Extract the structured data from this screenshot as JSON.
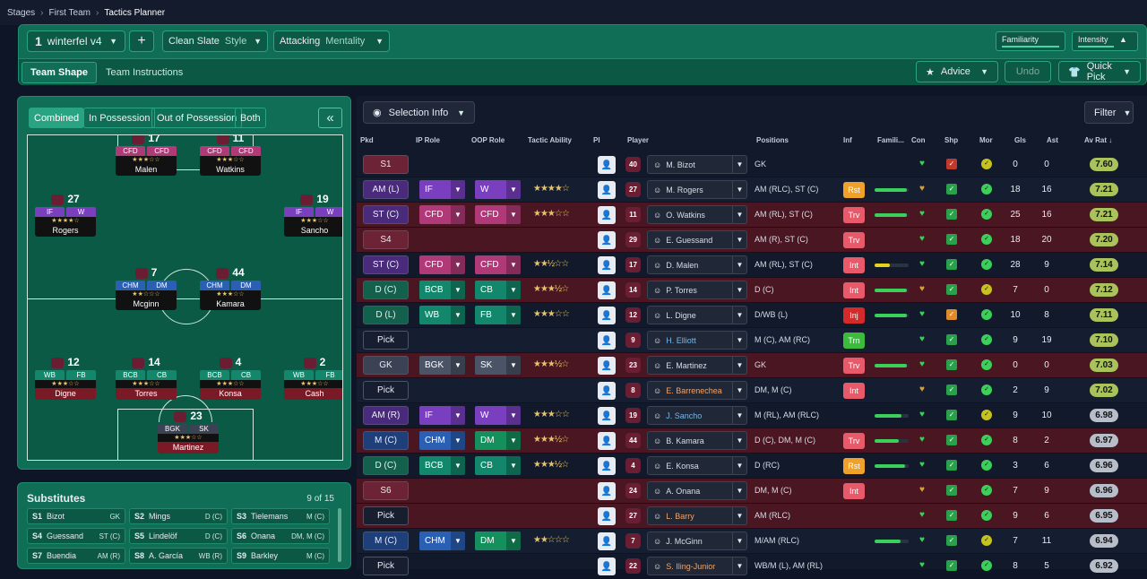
{
  "breadcrumb": {
    "items": [
      "Stages",
      "First Team",
      "Tactics Planner"
    ]
  },
  "ribbon": {
    "tactic_num": "1",
    "tactic_name": "winterfel v4",
    "style_value": "Clean Slate",
    "style_label": "Style",
    "mentality_value": "Attacking",
    "mentality_label": "Mentality",
    "familiarity_label": "Familiarity",
    "intensity_label": "Intensity",
    "tab_shape": "Team Shape",
    "tab_instructions": "Team Instructions",
    "advice": "Advice",
    "undo": "Undo",
    "quick_pick": "Quick Pick"
  },
  "pitch": {
    "modes": [
      "Combined",
      "In Possession",
      "Out of Possession",
      "Both"
    ],
    "players": [
      {
        "num": "17",
        "r1": "CFD",
        "r2": "CFD",
        "stars": "★★★☆☆",
        "name": "Malen",
        "c": "#b03a78"
      },
      {
        "num": "11",
        "r1": "CFD",
        "r2": "CFD",
        "stars": "★★★☆☆",
        "name": "Watkins",
        "c": "#b03a78"
      },
      {
        "num": "27",
        "r1": "IF",
        "r2": "W",
        "stars": "★★★★☆",
        "name": "Rogers",
        "c": "#7a3fbf"
      },
      {
        "num": "19",
        "r1": "IF",
        "r2": "W",
        "stars": "★★★☆☆",
        "name": "Sancho",
        "c": "#7a3fbf"
      },
      {
        "num": "7",
        "r1": "CHM",
        "r2": "DM",
        "stars": "★★☆☆☆",
        "name": "Mcginn",
        "c": "#2a5fb3"
      },
      {
        "num": "44",
        "r1": "CHM",
        "r2": "DM",
        "stars": "★★★☆☆",
        "name": "Kamara",
        "c": "#2a5fb3"
      },
      {
        "num": "12",
        "r1": "WB",
        "r2": "FB",
        "stars": "★★★☆☆",
        "name": "Digne",
        "c": "#12876b"
      },
      {
        "num": "14",
        "r1": "BCB",
        "r2": "CB",
        "stars": "★★★☆☆",
        "name": "Torres",
        "c": "#12876b"
      },
      {
        "num": "4",
        "r1": "BCB",
        "r2": "CB",
        "stars": "★★★☆☆",
        "name": "Konsa",
        "c": "#12876b"
      },
      {
        "num": "2",
        "r1": "WB",
        "r2": "FB",
        "stars": "★★★☆☆",
        "name": "Cash",
        "c": "#12876b"
      },
      {
        "num": "23",
        "r1": "BGK",
        "r2": "SK",
        "stars": "★★★☆☆",
        "name": "Martinez",
        "c": "#3b4254"
      }
    ]
  },
  "subs": {
    "title": "Substitutes",
    "count": "9 of 15",
    "items": [
      {
        "slot": "S1",
        "name": "Bizot",
        "pos": "GK"
      },
      {
        "slot": "S2",
        "name": "Mings",
        "pos": "D (C)"
      },
      {
        "slot": "S3",
        "name": "Tielemans",
        "pos": "M (C)"
      },
      {
        "slot": "S4",
        "name": "Guessand",
        "pos": "ST (C)"
      },
      {
        "slot": "S5",
        "name": "Lindelöf",
        "pos": "D (C)"
      },
      {
        "slot": "S6",
        "name": "Onana",
        "pos": "DM, M (C)"
      },
      {
        "slot": "S7",
        "name": "Buendia",
        "pos": "AM (R)"
      },
      {
        "slot": "S8",
        "name": "A. García",
        "pos": "WB (R)"
      },
      {
        "slot": "S9",
        "name": "Barkley",
        "pos": "M (C)"
      }
    ]
  },
  "table": {
    "selection_info": "Selection Info",
    "filter": "Filter",
    "headers": {
      "pkd": "Pkd",
      "ip": "IP Role",
      "oop": "OOP Role",
      "ability": "Tactic Ability",
      "pi": "PI",
      "player": "Player",
      "positions": "Positions",
      "inf": "Inf",
      "fam": "Famili...",
      "con": "Con",
      "shp": "Shp",
      "mor": "Mor",
      "gls": "Gls",
      "ast": "Ast",
      "avr": "Av Rat"
    },
    "rows": [
      {
        "pk": "S1",
        "ip": "",
        "oop": "",
        "stars": "",
        "num": "40",
        "name": "M. Bizot",
        "pos": "GK",
        "inf": "",
        "fam": 0,
        "gls": "0",
        "ast": "0",
        "avr": "7.60"
      },
      {
        "pk": "AM (L)",
        "ip": "IF",
        "oop": "W",
        "stars": "★★★★☆",
        "num": "27",
        "name": "M. Rogers",
        "pos": "AM (RLC), ST (C)",
        "inf": "Rst",
        "fam": 95,
        "gls": "18",
        "ast": "16",
        "avr": "7.21"
      },
      {
        "pk": "ST (C)",
        "ip": "CFD",
        "oop": "CFD",
        "stars": "★★★☆☆",
        "num": "11",
        "name": "O. Watkins",
        "pos": "AM (RL), ST (C)",
        "inf": "Trv",
        "fam": 95,
        "gls": "25",
        "ast": "16",
        "avr": "7.21"
      },
      {
        "pk": "S4",
        "ip": "",
        "oop": "",
        "stars": "",
        "num": "29",
        "name": "E. Guessand",
        "pos": "AM (R), ST (C)",
        "inf": "Trv",
        "fam": 0,
        "gls": "18",
        "ast": "20",
        "avr": "7.20"
      },
      {
        "pk": "ST (C)",
        "ip": "CFD",
        "oop": "CFD",
        "stars": "★★½☆☆",
        "num": "17",
        "name": "D. Malen",
        "pos": "AM (RL), ST (C)",
        "inf": "Int",
        "fam": 45,
        "gls": "28",
        "ast": "9",
        "avr": "7.14"
      },
      {
        "pk": "D (C)",
        "ip": "BCB",
        "oop": "CB",
        "stars": "★★★½☆",
        "num": "14",
        "name": "P. Torres",
        "pos": "D (C)",
        "inf": "Int",
        "fam": 95,
        "gls": "7",
        "ast": "0",
        "avr": "7.12"
      },
      {
        "pk": "D (L)",
        "ip": "WB",
        "oop": "FB",
        "stars": "★★★☆☆",
        "num": "12",
        "name": "L. Digne",
        "pos": "D/WB (L)",
        "inf": "Inj",
        "fam": 95,
        "gls": "10",
        "ast": "8",
        "avr": "7.11"
      },
      {
        "pk": "Pick",
        "ip": "",
        "oop": "",
        "stars": "",
        "num": "9",
        "name": "H. Elliott",
        "pos": "M (C), AM (RC)",
        "inf": "Trn",
        "fam": 0,
        "gls": "9",
        "ast": "19",
        "avr": "7.10"
      },
      {
        "pk": "GK",
        "ip": "BGK",
        "oop": "SK",
        "stars": "★★★½☆",
        "num": "23",
        "name": "E. Martinez",
        "pos": "GK",
        "inf": "Trv",
        "fam": 95,
        "gls": "0",
        "ast": "0",
        "avr": "7.03"
      },
      {
        "pk": "Pick",
        "ip": "",
        "oop": "",
        "stars": "",
        "num": "8",
        "name": "E. Barrenechea",
        "pos": "DM, M (C)",
        "inf": "Int",
        "fam": 0,
        "gls": "2",
        "ast": "9",
        "avr": "7.02"
      },
      {
        "pk": "AM (R)",
        "ip": "IF",
        "oop": "W",
        "stars": "★★★☆☆",
        "num": "19",
        "name": "J. Sancho",
        "pos": "M (RL), AM (RLC)",
        "inf": "",
        "fam": 80,
        "gls": "9",
        "ast": "10",
        "avr": "6.98"
      },
      {
        "pk": "M (C)",
        "ip": "CHM",
        "oop": "DM",
        "stars": "★★★½☆",
        "num": "44",
        "name": "B. Kamara",
        "pos": "D (C), DM, M (C)",
        "inf": "Trv",
        "fam": 70,
        "gls": "8",
        "ast": "2",
        "avr": "6.97"
      },
      {
        "pk": "D (C)",
        "ip": "BCB",
        "oop": "CB",
        "stars": "★★★½☆",
        "num": "4",
        "name": "E. Konsa",
        "pos": "D (RC)",
        "inf": "Rst",
        "fam": 90,
        "gls": "3",
        "ast": "6",
        "avr": "6.96"
      },
      {
        "pk": "S6",
        "ip": "",
        "oop": "",
        "stars": "",
        "num": "24",
        "name": "A. Onana",
        "pos": "DM, M (C)",
        "inf": "Int",
        "fam": 0,
        "gls": "7",
        "ast": "9",
        "avr": "6.96"
      },
      {
        "pk": "Pick",
        "ip": "",
        "oop": "",
        "stars": "",
        "num": "27",
        "name": "L. Barry",
        "pos": "AM (RLC)",
        "inf": "",
        "fam": 0,
        "gls": "9",
        "ast": "6",
        "avr": "6.95"
      },
      {
        "pk": "M (C)",
        "ip": "CHM",
        "oop": "DM",
        "stars": "★★☆☆☆",
        "num": "7",
        "name": "J. McGinn",
        "pos": "M/AM (RLC)",
        "inf": "",
        "fam": 75,
        "gls": "7",
        "ast": "11",
        "avr": "6.94"
      },
      {
        "pk": "Pick",
        "ip": "",
        "oop": "",
        "stars": "",
        "num": "22",
        "name": "S. Iling-Junior",
        "pos": "WB/M (L), AM (RL)",
        "inf": "",
        "fam": 0,
        "gls": "8",
        "ast": "5",
        "avr": "6.92"
      }
    ]
  }
}
